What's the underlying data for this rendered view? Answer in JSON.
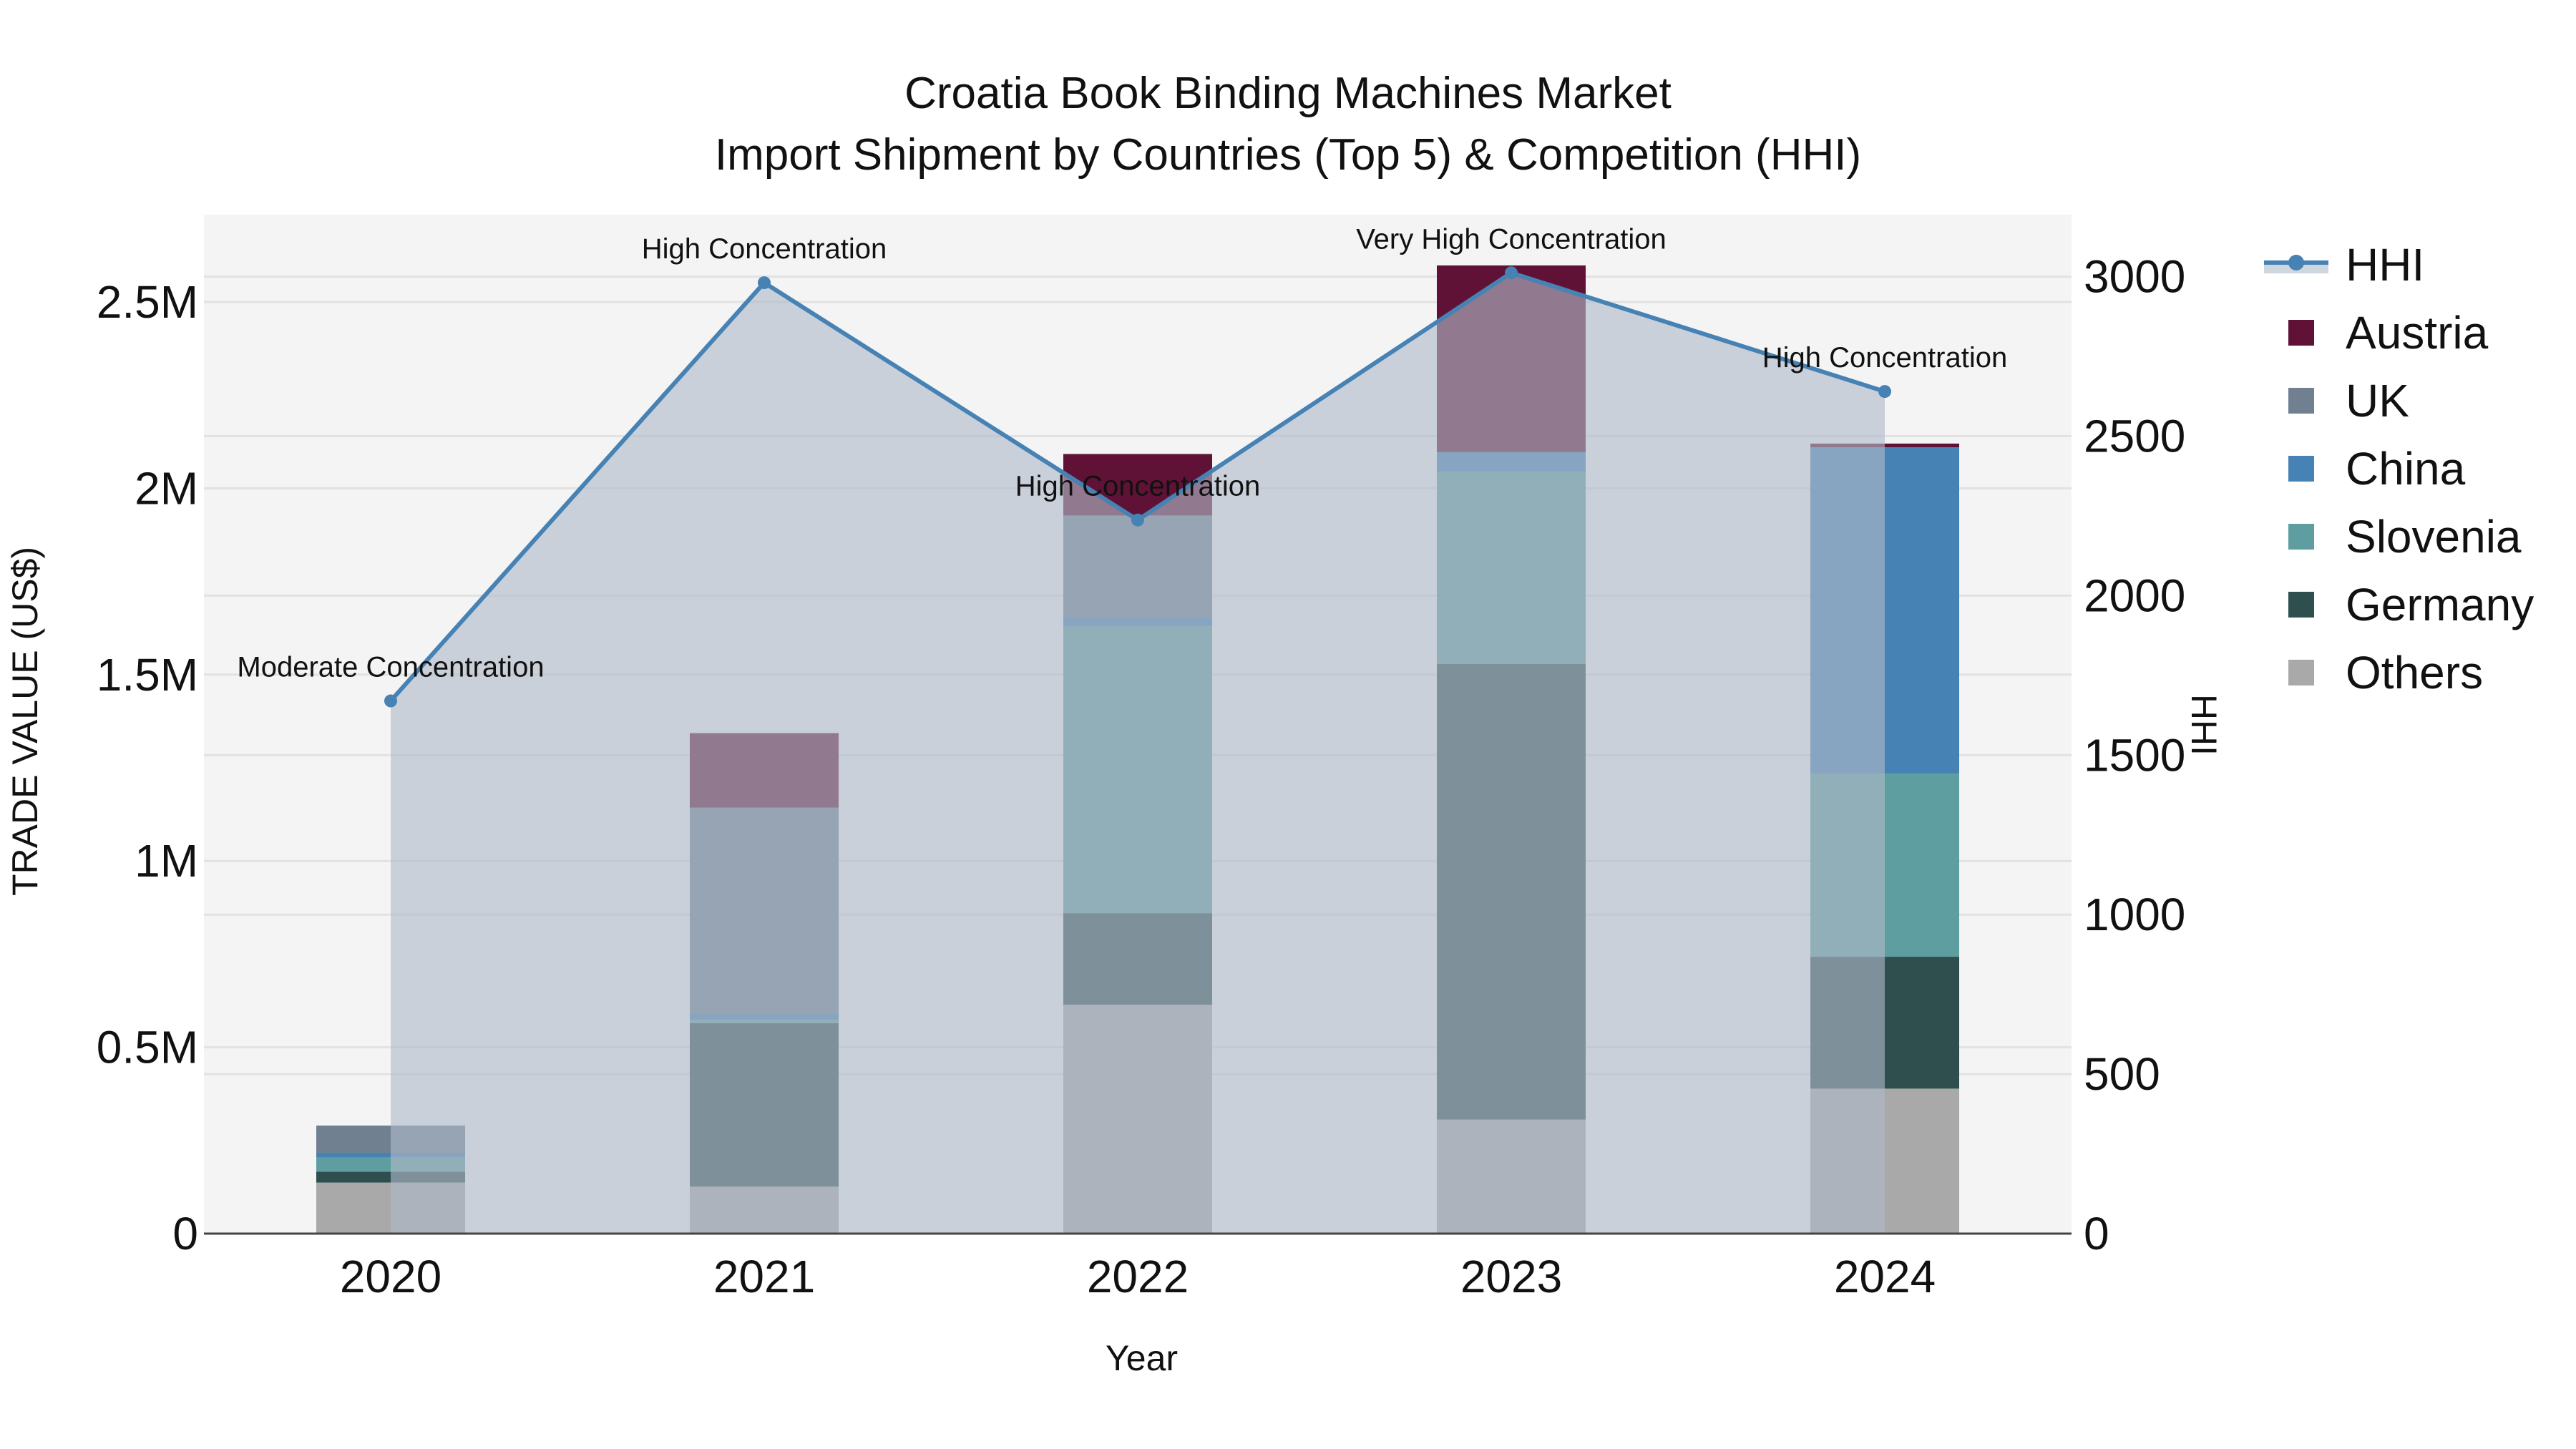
{
  "title": {
    "line1": "Croatia Book Binding Machines Market",
    "line2": "Import Shipment by Countries (Top 5) & Competition (HHI)"
  },
  "axes": {
    "x_title": "Year",
    "y_left_title": "TRADE VALUE (US$)",
    "y_right_title": "HHI",
    "y_left_ticks": [
      "0",
      "0.5M",
      "1M",
      "1.5M",
      "2M",
      "2.5M"
    ],
    "y_left_tick_values": [
      0,
      0.5,
      1,
      1.5,
      2,
      2.5
    ],
    "y_right_ticks": [
      "0",
      "500",
      "1000",
      "1500",
      "2000",
      "2500",
      "3000"
    ],
    "y_right_tick_values": [
      0,
      500,
      1000,
      1500,
      2000,
      2500,
      3000
    ]
  },
  "legend": {
    "items": [
      {
        "label": "HHI",
        "type": "line",
        "color": "#4682B4"
      },
      {
        "label": "Austria",
        "type": "bar",
        "color": "#5F1235"
      },
      {
        "label": "UK",
        "type": "bar",
        "color": "#708090"
      },
      {
        "label": "China",
        "type": "bar",
        "color": "#4682B4"
      },
      {
        "label": "Slovenia",
        "type": "bar",
        "color": "#5F9EA0"
      },
      {
        "label": "Germany",
        "type": "bar",
        "color": "#2F4F4F"
      },
      {
        "label": "Others",
        "type": "bar",
        "color": "#A9A9A9"
      }
    ]
  },
  "colors": {
    "plot_bg": "#F4F4F4",
    "grid": "#E2E2E2",
    "area_fill": "rgba(176,186,200,0.62)",
    "hhi_line": "#4682B4",
    "axis_line": "#444444"
  },
  "chart_data": {
    "type": "bar",
    "stacked": true,
    "title": "Croatia Book Binding Machines Market — Import Shipment by Countries (Top 5) & Competition (HHI)",
    "xlabel": "Year",
    "ylabel": "TRADE VALUE (US$)",
    "y2label": "HHI",
    "categories": [
      "2020",
      "2021",
      "2022",
      "2023",
      "2024"
    ],
    "ylim": [
      0,
      2.73
    ],
    "y_unit": "million US$",
    "y2lim": [
      0,
      3200
    ],
    "grid": true,
    "legend_position": "right",
    "series": [
      {
        "name": "Others",
        "color": "#A9A9A9",
        "values": [
          0.137,
          0.126,
          0.614,
          0.306,
          0.389
        ]
      },
      {
        "name": "Germany",
        "color": "#2F4F4F",
        "values": [
          0.029,
          0.439,
          0.246,
          1.223,
          0.354
        ]
      },
      {
        "name": "Slovenia",
        "color": "#5F9EA0",
        "values": [
          0.038,
          0.009,
          0.77,
          0.516,
          0.491
        ]
      },
      {
        "name": "China",
        "color": "#4682B4",
        "values": [
          0.013,
          0.018,
          0.024,
          0.052,
          0.876
        ]
      },
      {
        "name": "UK",
        "color": "#708090",
        "values": [
          0.073,
          0.551,
          0.273,
          0.0,
          0.0
        ]
      },
      {
        "name": "Austria",
        "color": "#5F1235",
        "values": [
          0.0,
          0.2,
          0.165,
          0.501,
          0.01
        ]
      }
    ],
    "totals": [
      0.29,
      1.343,
      2.092,
      2.598,
      2.12
    ],
    "hhi": {
      "name": "HHI",
      "type": "area+line",
      "axis": "right",
      "values": [
        1670,
        2981,
        2237,
        3012,
        2640
      ],
      "annotations": [
        "Moderate Concentration",
        "High Concentration",
        "High Concentration",
        "Very High Concentration",
        "High Concentration"
      ]
    }
  }
}
